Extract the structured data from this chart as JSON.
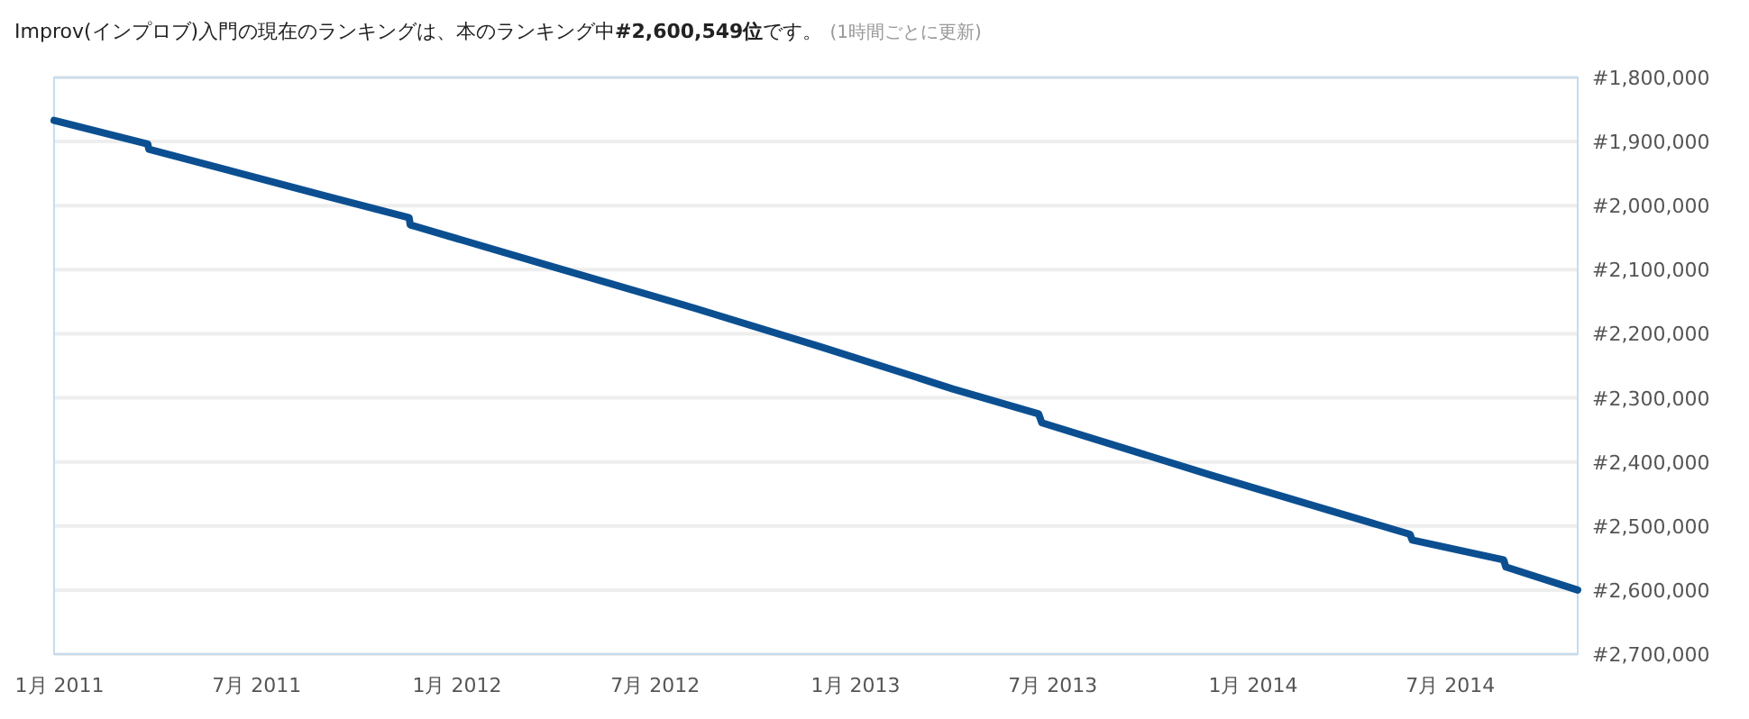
{
  "chart_data": {
    "type": "line",
    "title": "Improv(インプロブ)入門の現在のランキングは、本のランキング中#2,600,549位です。",
    "subtitle": "(1時間ごとに更新)",
    "x": [
      "2010-12-27",
      "2011-03-23",
      "2011-03-24",
      "2011-09-09",
      "2011-11-18",
      "2011-11-19",
      "2012-03-22",
      "2012-08-06",
      "2012-12-01",
      "2013-02-17",
      "2013-03-31",
      "2013-06-18",
      "2013-06-21",
      "2013-11-24",
      "2014-05-25",
      "2014-05-27",
      "2014-08-19",
      "2014-08-21",
      "2014-10-26"
    ],
    "series": [
      {
        "color": "#0b4f91",
        "values": [
          1867000,
          1904000,
          1912000,
          1988000,
          2019000,
          2030000,
          2092000,
          2160000,
          2221000,
          2263000,
          2286000,
          2325000,
          2339000,
          2421000,
          2513000,
          2522000,
          2553000,
          2564000,
          2600000
        ]
      }
    ],
    "xlim": [
      "2010-12-27",
      "2014-10-26"
    ],
    "xticks": [
      {
        "value": "2011-01-01",
        "label": "1月 2011"
      },
      {
        "value": "2011-07-01",
        "label": "7月 2011"
      },
      {
        "value": "2012-01-01",
        "label": "1月 2012"
      },
      {
        "value": "2012-07-01",
        "label": "7月 2012"
      },
      {
        "value": "2013-01-01",
        "label": "1月 2013"
      },
      {
        "value": "2013-07-01",
        "label": "7月 2013"
      },
      {
        "value": "2014-01-01",
        "label": "1月 2014"
      },
      {
        "value": "2014-07-01",
        "label": "7月 2014"
      }
    ],
    "ylim": [
      2700000,
      1800000
    ],
    "yticks": [
      {
        "value": 1800000,
        "label": "#1,800,000"
      },
      {
        "value": 1900000,
        "label": "#1,900,000"
      },
      {
        "value": 2000000,
        "label": "#2,000,000"
      },
      {
        "value": 2100000,
        "label": "#2,100,000"
      },
      {
        "value": 2200000,
        "label": "#2,200,000"
      },
      {
        "value": 2300000,
        "label": "#2,300,000"
      },
      {
        "value": 2400000,
        "label": "#2,400,000"
      },
      {
        "value": 2500000,
        "label": "#2,500,000"
      },
      {
        "value": 2600000,
        "label": "#2,600,000"
      },
      {
        "value": 2700000,
        "label": "#2,700,000"
      }
    ],
    "grid": "y",
    "marker": "none",
    "line_style": "solid"
  }
}
